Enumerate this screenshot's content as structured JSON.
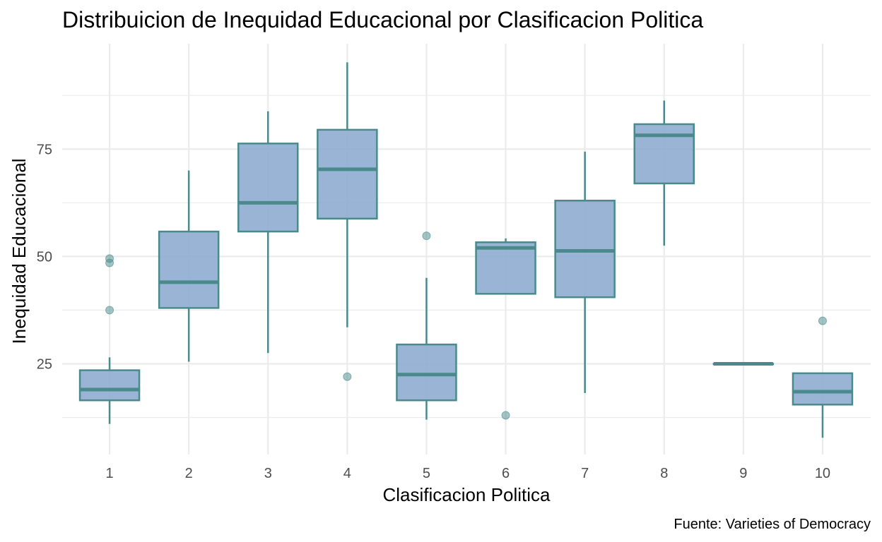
{
  "chart_data": {
    "type": "boxplot",
    "title": "Distribuicion de Inequidad Educacional por Clasificacion Politica",
    "xlabel": "Clasificacion Politica",
    "ylabel": "Inequidad Educacional",
    "caption": "Fuente: Varieties of Democracy",
    "ylim": [
      5,
      98
    ],
    "yticks": [
      25,
      50,
      75
    ],
    "grid": true,
    "colors": {
      "fill": "#8eaccf",
      "stroke": "#4a8a8c",
      "grid": "#ebebeb"
    },
    "categories": [
      "1",
      "2",
      "3",
      "4",
      "5",
      "6",
      "7",
      "8",
      "9",
      "10"
    ],
    "boxes": [
      {
        "q1": 16.5,
        "median": 19.0,
        "q3": 23.5,
        "lower": 11.0,
        "upper": 26.5,
        "outliers": [
          37.5,
          48.5,
          49.5
        ]
      },
      {
        "q1": 38.0,
        "median": 44.0,
        "q3": 55.8,
        "lower": 25.5,
        "upper": 70.0,
        "outliers": []
      },
      {
        "q1": 55.8,
        "median": 62.5,
        "q3": 76.3,
        "lower": 27.5,
        "upper": 83.8,
        "outliers": []
      },
      {
        "q1": 58.8,
        "median": 70.3,
        "q3": 79.5,
        "lower": 33.5,
        "upper": 95.2,
        "outliers": [
          22.0
        ]
      },
      {
        "q1": 16.5,
        "median": 22.5,
        "q3": 29.5,
        "lower": 12.0,
        "upper": 45.0,
        "outliers": [
          54.8
        ]
      },
      {
        "q1": 41.3,
        "median": 52.0,
        "q3": 53.3,
        "lower": 41.3,
        "upper": 54.2,
        "outliers": [
          13.0
        ]
      },
      {
        "q1": 40.5,
        "median": 51.3,
        "q3": 63.0,
        "lower": 18.2,
        "upper": 74.4,
        "outliers": []
      },
      {
        "q1": 67.0,
        "median": 78.2,
        "q3": 80.8,
        "lower": 52.5,
        "upper": 86.3,
        "outliers": []
      },
      {
        "q1": 25.0,
        "median": 25.0,
        "q3": 25.0,
        "lower": 25.0,
        "upper": 25.0,
        "outliers": []
      },
      {
        "q1": 15.5,
        "median": 18.5,
        "q3": 22.8,
        "lower": 7.8,
        "upper": 22.8,
        "outliers": [
          35.0
        ]
      }
    ]
  }
}
